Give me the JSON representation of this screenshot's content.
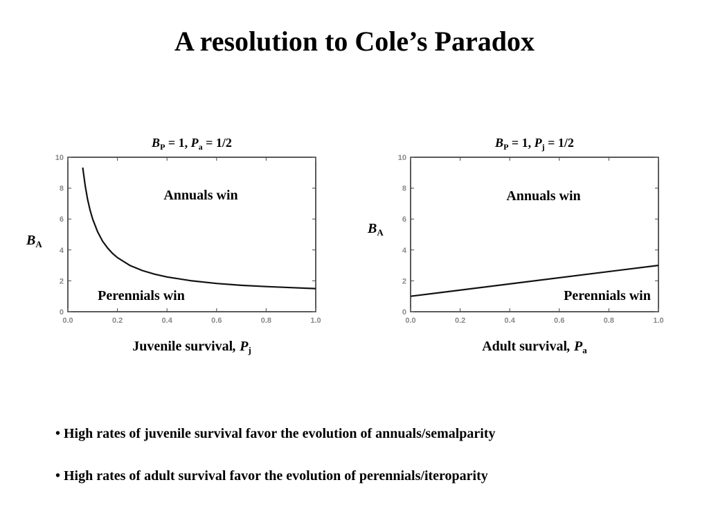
{
  "slide": {
    "title": "A resolution to Cole’s Paradox"
  },
  "bullets": [
    "• High rates of juvenile survival favor the evolution of annuals/semalparity",
    "• High rates of adult survival favor the evolution of perennials/iteroparity"
  ],
  "chart_data": [
    {
      "type": "line",
      "title_parts": {
        "b_main": "B",
        "b_sub": "P",
        "b_rest": " = 1, ",
        "p_main": "P",
        "p_sub": "a",
        "p_rest": " = 1/2"
      },
      "xlabel_parts": {
        "text": "Juvenile survival",
        "comma": ",",
        "main": " P",
        "sub": "j"
      },
      "ylabel_parts": {
        "main": "B",
        "sub": "A"
      },
      "xlim": [
        0,
        1
      ],
      "ylim": [
        0,
        10
      ],
      "xticks": [
        "0.0",
        "0.2",
        "0.4",
        "0.6",
        "0.8",
        "1.0"
      ],
      "yticks": [
        "0",
        "2",
        "4",
        "6",
        "8",
        "10"
      ],
      "region_labels": {
        "upper": "Annuals win",
        "lower": "Perennials win"
      },
      "series": [
        {
          "x": [
            0.06,
            0.07,
            0.08,
            0.09,
            0.1,
            0.12,
            0.14,
            0.16,
            0.18,
            0.2,
            0.25,
            0.3,
            0.35,
            0.4,
            0.5,
            0.6,
            0.7,
            0.8,
            0.9,
            1.0
          ],
          "y": [
            9.33,
            8.14,
            7.25,
            6.56,
            6.0,
            5.17,
            4.57,
            4.13,
            3.78,
            3.5,
            3.0,
            2.67,
            2.43,
            2.25,
            2.0,
            1.83,
            1.71,
            1.63,
            1.56,
            1.5
          ]
        }
      ]
    },
    {
      "type": "line",
      "title_parts": {
        "b_main": "B",
        "b_sub": "P",
        "b_rest": " = 1, ",
        "p_main": "P",
        "p_sub": "j",
        "p_rest": " = 1/2"
      },
      "xlabel_parts": {
        "text": "Adult survival",
        "comma": ",",
        "main": " P",
        "sub": "a"
      },
      "ylabel_parts": {
        "main": "B",
        "sub": "A"
      },
      "xlim": [
        0,
        1
      ],
      "ylim": [
        0,
        10
      ],
      "xticks": [
        "0.0",
        "0.2",
        "0.4",
        "0.6",
        "0.8",
        "1.0"
      ],
      "yticks": [
        "0",
        "2",
        "4",
        "6",
        "8",
        "10"
      ],
      "region_labels": {
        "upper": "Annuals win",
        "lower": "Perennials win"
      },
      "series": [
        {
          "x": [
            0.0,
            1.0
          ],
          "y": [
            1.0,
            3.0
          ]
        }
      ]
    }
  ]
}
